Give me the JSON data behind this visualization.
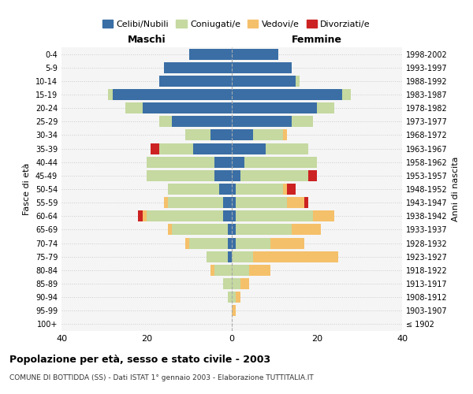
{
  "age_groups": [
    "100+",
    "95-99",
    "90-94",
    "85-89",
    "80-84",
    "75-79",
    "70-74",
    "65-69",
    "60-64",
    "55-59",
    "50-54",
    "45-49",
    "40-44",
    "35-39",
    "30-34",
    "25-29",
    "20-24",
    "15-19",
    "10-14",
    "5-9",
    "0-4"
  ],
  "birth_years": [
    "≤ 1902",
    "1903-1907",
    "1908-1912",
    "1913-1917",
    "1918-1922",
    "1923-1927",
    "1928-1932",
    "1933-1937",
    "1938-1942",
    "1943-1947",
    "1948-1952",
    "1953-1957",
    "1958-1962",
    "1963-1967",
    "1968-1972",
    "1973-1977",
    "1978-1982",
    "1983-1987",
    "1988-1992",
    "1993-1997",
    "1998-2002"
  ],
  "maschi": {
    "celibi": [
      0,
      0,
      0,
      0,
      0,
      1,
      1,
      1,
      2,
      2,
      3,
      4,
      4,
      9,
      5,
      14,
      21,
      28,
      17,
      16,
      10
    ],
    "coniugati": [
      0,
      0,
      1,
      2,
      4,
      5,
      9,
      13,
      18,
      13,
      12,
      16,
      16,
      8,
      6,
      3,
      4,
      1,
      0,
      0,
      0
    ],
    "vedovi": [
      0,
      0,
      0,
      0,
      1,
      0,
      1,
      1,
      1,
      1,
      0,
      0,
      0,
      0,
      0,
      0,
      0,
      0,
      0,
      0,
      0
    ],
    "divorziati": [
      0,
      0,
      0,
      0,
      0,
      0,
      0,
      0,
      1,
      0,
      0,
      0,
      0,
      2,
      0,
      0,
      0,
      0,
      0,
      0,
      0
    ]
  },
  "femmine": {
    "nubili": [
      0,
      0,
      0,
      0,
      0,
      0,
      1,
      1,
      1,
      1,
      1,
      2,
      3,
      8,
      5,
      14,
      20,
      26,
      15,
      14,
      11
    ],
    "coniugate": [
      0,
      0,
      1,
      2,
      4,
      5,
      8,
      13,
      18,
      12,
      11,
      16,
      17,
      10,
      7,
      5,
      4,
      2,
      1,
      0,
      0
    ],
    "vedove": [
      0,
      1,
      1,
      2,
      5,
      20,
      8,
      7,
      5,
      4,
      1,
      0,
      0,
      0,
      1,
      0,
      0,
      0,
      0,
      0,
      0
    ],
    "divorziate": [
      0,
      0,
      0,
      0,
      0,
      0,
      0,
      0,
      0,
      1,
      2,
      2,
      0,
      0,
      0,
      0,
      0,
      0,
      0,
      0,
      0
    ]
  },
  "colors": {
    "celibi": "#3a6ea5",
    "coniugati": "#c5d9a0",
    "vedovi": "#f5c06a",
    "divorziati": "#cc2222"
  },
  "xlim": 40,
  "title": "Popolazione per età, sesso e stato civile - 2003",
  "subtitle": "COMUNE DI BOTTIDDA (SS) - Dati ISTAT 1° gennaio 2003 - Elaborazione TUTTITALIA.IT",
  "ylabel": "Fasce di età",
  "ylabel_right": "Anni di nascita",
  "legend_labels": [
    "Celibi/Nubili",
    "Coniugati/e",
    "Vedovi/e",
    "Divorziati/e"
  ],
  "bg_color": "#f5f5f5",
  "grid_color": "#cccccc"
}
